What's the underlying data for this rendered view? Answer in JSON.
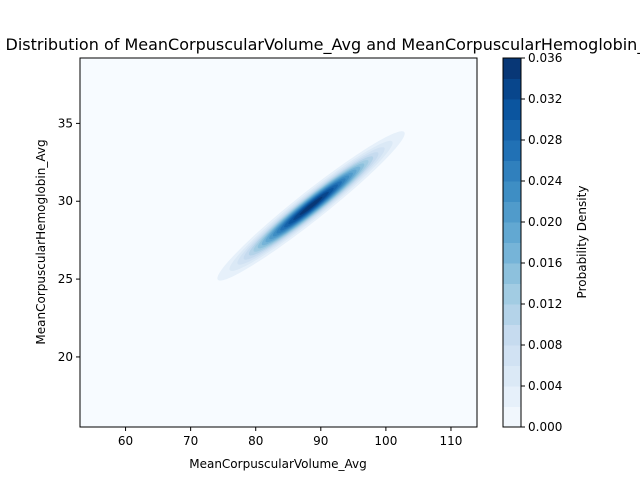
{
  "chart_data": {
    "type": "kde-contour",
    "title": "Joint Distribution of MeanCorpuscularVolume_Avg and MeanCorpuscularHemoglobin_Avg",
    "xlabel": "MeanCorpuscularVolume_Avg",
    "ylabel": "MeanCorpuscularHemoglobin_Avg",
    "xlim": [
      53,
      114
    ],
    "ylim": [
      15.5,
      39.2
    ],
    "xticks": [
      60,
      70,
      80,
      90,
      100,
      110
    ],
    "yticks": [
      20,
      25,
      30,
      35
    ],
    "colorbar": {
      "label": "Probability Density",
      "min": 0.0,
      "max": 0.036,
      "ticks": [
        "0.000",
        "0.004",
        "0.008",
        "0.012",
        "0.016",
        "0.020",
        "0.024",
        "0.028",
        "0.032",
        "0.036"
      ],
      "levels": 18
    },
    "distribution": {
      "mean_x": 88.5,
      "mean_y": 29.7,
      "sd_x": 6.0,
      "sd_y": 2.0,
      "correlation": 0.97,
      "peak_density": 0.0355
    },
    "colormap": "Blues",
    "colormap_stops": [
      "#f7fbff",
      "#deebf7",
      "#c6dbef",
      "#9ecae1",
      "#6baed6",
      "#4292c6",
      "#2171b5",
      "#08519c",
      "#08306b"
    ]
  }
}
